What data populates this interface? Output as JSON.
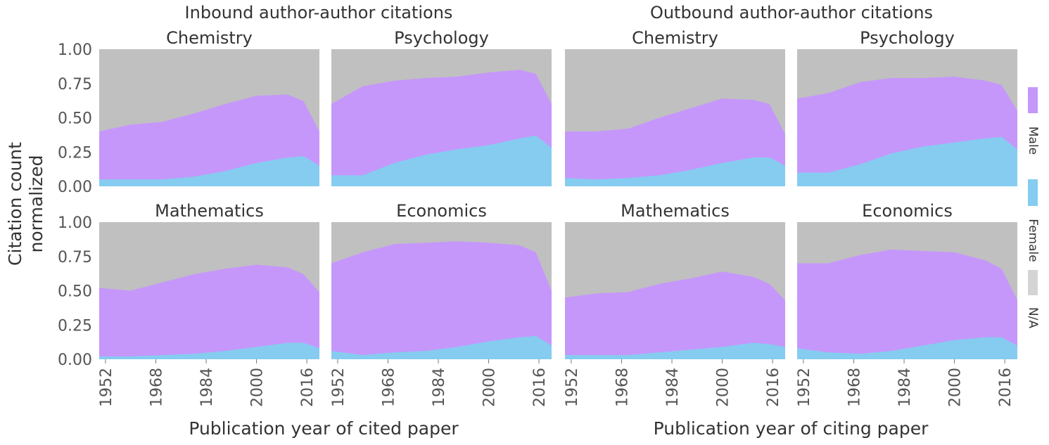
{
  "chart_data": {
    "type": "area",
    "stacked": true,
    "normalized": true,
    "titles": [
      "Inbound author-author citations",
      "Outbound author-author citations"
    ],
    "ylabel": [
      "Citation count",
      "normalized"
    ],
    "xlabels": [
      "Publication year of cited paper",
      "Publication year of citing paper"
    ],
    "ylim": [
      0,
      1
    ],
    "xlim": [
      1950,
      2020
    ],
    "yticks": [
      "0.00",
      "0.25",
      "0.50",
      "0.75",
      "1.00"
    ],
    "xticks": [
      "1952",
      "1968",
      "1984",
      "2000",
      "2016"
    ],
    "legend": [
      {
        "name": "Male",
        "color": "#C597FB"
      },
      {
        "name": "Female",
        "color": "#85CCF0"
      },
      {
        "name": "N/A",
        "color": "#D4D4D4"
      }
    ],
    "background_color": "#C0C0C0",
    "years": [
      1950,
      1960,
      1970,
      1980,
      1990,
      2000,
      2010,
      2015,
      2020
    ],
    "panels": [
      {
        "group": "inbound",
        "field": "Chemistry",
        "female": [
          0.05,
          0.05,
          0.05,
          0.07,
          0.11,
          0.17,
          0.21,
          0.22,
          0.15
        ],
        "female_male": [
          0.4,
          0.45,
          0.47,
          0.53,
          0.6,
          0.66,
          0.67,
          0.62,
          0.4
        ]
      },
      {
        "group": "inbound",
        "field": "Psychology",
        "female": [
          0.08,
          0.08,
          0.17,
          0.23,
          0.27,
          0.3,
          0.35,
          0.37,
          0.28
        ],
        "female_male": [
          0.6,
          0.73,
          0.77,
          0.79,
          0.8,
          0.83,
          0.85,
          0.82,
          0.6
        ]
      },
      {
        "group": "inbound",
        "field": "Mathematics",
        "female": [
          0.02,
          0.02,
          0.03,
          0.04,
          0.06,
          0.09,
          0.12,
          0.12,
          0.08
        ],
        "female_male": [
          0.52,
          0.5,
          0.56,
          0.62,
          0.66,
          0.69,
          0.67,
          0.62,
          0.49
        ]
      },
      {
        "group": "inbound",
        "field": "Economics",
        "female": [
          0.06,
          0.03,
          0.05,
          0.06,
          0.09,
          0.13,
          0.16,
          0.17,
          0.1
        ],
        "female_male": [
          0.7,
          0.78,
          0.84,
          0.85,
          0.86,
          0.85,
          0.83,
          0.78,
          0.5
        ]
      },
      {
        "group": "outbound",
        "field": "Chemistry",
        "female": [
          0.06,
          0.05,
          0.06,
          0.08,
          0.12,
          0.17,
          0.21,
          0.21,
          0.15
        ],
        "female_male": [
          0.4,
          0.4,
          0.42,
          0.5,
          0.57,
          0.64,
          0.63,
          0.6,
          0.38
        ]
      },
      {
        "group": "outbound",
        "field": "Psychology",
        "female": [
          0.1,
          0.1,
          0.16,
          0.24,
          0.29,
          0.32,
          0.35,
          0.36,
          0.27
        ],
        "female_male": [
          0.64,
          0.68,
          0.76,
          0.79,
          0.79,
          0.8,
          0.77,
          0.74,
          0.55
        ]
      },
      {
        "group": "outbound",
        "field": "Mathematics",
        "female": [
          0.03,
          0.03,
          0.03,
          0.05,
          0.07,
          0.09,
          0.12,
          0.11,
          0.09
        ],
        "female_male": [
          0.45,
          0.48,
          0.49,
          0.55,
          0.59,
          0.64,
          0.6,
          0.55,
          0.43
        ]
      },
      {
        "group": "outbound",
        "field": "Economics",
        "female": [
          0.08,
          0.05,
          0.04,
          0.06,
          0.1,
          0.14,
          0.16,
          0.16,
          0.1
        ],
        "female_male": [
          0.7,
          0.7,
          0.76,
          0.8,
          0.79,
          0.78,
          0.72,
          0.66,
          0.43
        ]
      }
    ]
  }
}
